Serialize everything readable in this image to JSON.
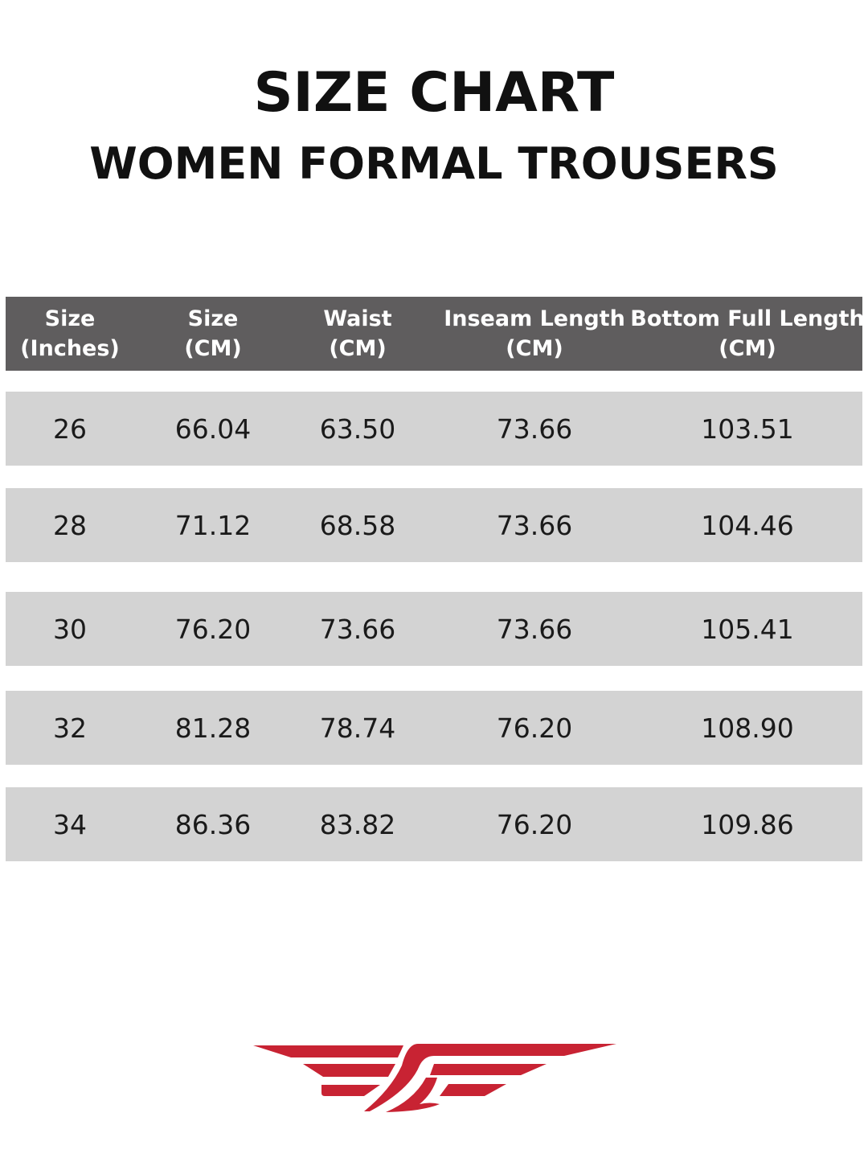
{
  "title": "SIZE CHART",
  "subtitle": "WOMEN FORMAL TROUSERS",
  "table": {
    "headers": [
      [
        "Size",
        "(Inches)"
      ],
      [
        "Size",
        "(CM)"
      ],
      [
        "Waist",
        "(CM)"
      ],
      [
        "Inseam Length",
        "(CM)"
      ],
      [
        "Bottom Full Length",
        "(CM)"
      ]
    ],
    "rows": [
      [
        "26",
        "66.04",
        "63.50",
        "73.66",
        "103.51"
      ],
      [
        "28",
        "71.12",
        "68.58",
        "73.66",
        "104.46"
      ],
      [
        "30",
        "76.20",
        "73.66",
        "73.66",
        "105.41"
      ],
      [
        "32",
        "81.28",
        "78.74",
        "76.20",
        "108.90"
      ],
      [
        "34",
        "86.36",
        "83.82",
        "76.20",
        "109.86"
      ]
    ]
  },
  "colors": {
    "header_bg": "#5f5d5e",
    "row_bg": "#d3d3d3",
    "logo": "#c82333"
  },
  "logo": {
    "icon": "winged-logo-icon"
  }
}
